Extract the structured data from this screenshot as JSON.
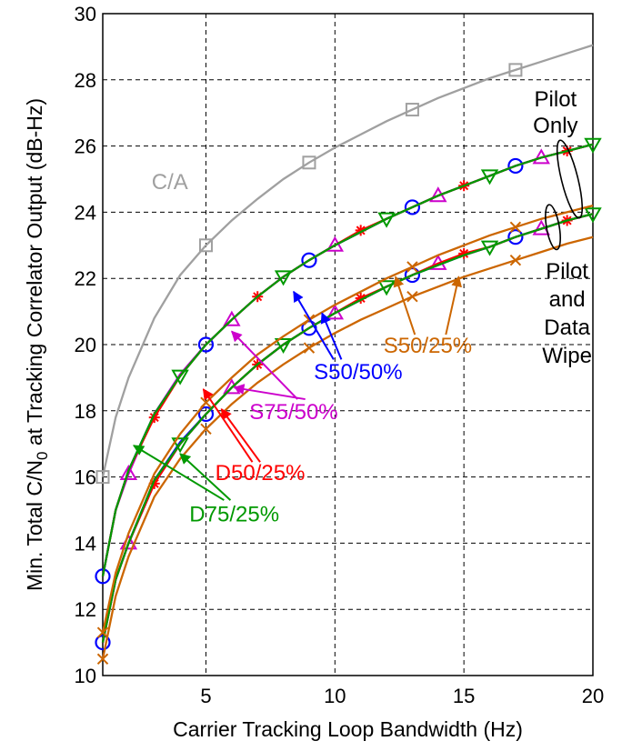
{
  "chart_data": {
    "type": "line",
    "title": "",
    "xlabel": "Carrier Tracking Loop Bandwidth (Hz)",
    "ylabel_parts": [
      "Min. Total C/N",
      "0",
      " at Tracking Correlator Output (dB-Hz)"
    ],
    "xlim": [
      1,
      20
    ],
    "ylim": [
      10,
      30
    ],
    "xticks": [
      5,
      10,
      15,
      20
    ],
    "yticks": [
      10,
      12,
      14,
      16,
      18,
      20,
      22,
      24,
      26,
      28,
      30
    ],
    "grid": true,
    "series": [
      {
        "name": "C/A",
        "color": "#a0a0a0",
        "marker": "square",
        "x": [
          1,
          1.5,
          2,
          3,
          4,
          5,
          6,
          7,
          8,
          9,
          10,
          11,
          12,
          13,
          14,
          15,
          16,
          17,
          18,
          19,
          20
        ],
        "y": [
          16.0,
          17.8,
          19.0,
          20.8,
          22.1,
          23.0,
          23.75,
          24.4,
          25.0,
          25.5,
          25.95,
          26.35,
          26.75,
          27.1,
          27.45,
          27.75,
          28.05,
          28.3,
          28.55,
          28.8,
          29.05
        ],
        "marker_x": [
          1,
          5,
          9,
          13,
          17
        ]
      },
      {
        "name": "S50/50%",
        "color": "#0000ff",
        "marker": "circle",
        "x": [
          1,
          1.5,
          2,
          3,
          4,
          5,
          6,
          7,
          8,
          9,
          10,
          11,
          12,
          13,
          14,
          15,
          16,
          17,
          18,
          19,
          20
        ],
        "y": [
          13.0,
          15.0,
          16.2,
          17.9,
          19.1,
          20.0,
          20.75,
          21.45,
          22.05,
          22.55,
          23.0,
          23.4,
          23.8,
          24.15,
          24.5,
          24.8,
          25.1,
          25.4,
          25.65,
          25.85,
          26.05
        ],
        "marker_x": [
          1,
          5,
          9,
          13,
          17
        ]
      },
      {
        "name": "S75/50%",
        "color": "#cc00cc",
        "marker": "triangle-up",
        "x": [
          1,
          1.5,
          2,
          3,
          4,
          5,
          6,
          7,
          8,
          9,
          10,
          11,
          12,
          13,
          14,
          15,
          16,
          17,
          18,
          19,
          20
        ],
        "y": [
          13.0,
          15.0,
          16.1,
          17.9,
          19.1,
          20.0,
          20.75,
          21.45,
          22.05,
          22.55,
          23.0,
          23.4,
          23.8,
          24.15,
          24.5,
          24.8,
          25.1,
          25.4,
          25.65,
          25.85,
          26.05
        ],
        "marker_x": [
          2,
          6,
          10,
          14,
          18
        ]
      },
      {
        "name": "D50/25%",
        "color": "#ff0000",
        "marker": "asterisk",
        "x": [
          1,
          1.5,
          2,
          3,
          4,
          5,
          6,
          7,
          8,
          9,
          10,
          11,
          12,
          13,
          14,
          15,
          16,
          17,
          18,
          19,
          20
        ],
        "y": [
          13.0,
          15.0,
          16.2,
          17.8,
          19.05,
          20.0,
          20.75,
          21.45,
          22.05,
          22.55,
          23.0,
          23.45,
          23.8,
          24.15,
          24.5,
          24.8,
          25.1,
          25.4,
          25.65,
          25.85,
          26.05
        ],
        "marker_x": [
          3,
          7,
          11,
          15,
          19
        ]
      },
      {
        "name": "D75/25%",
        "color": "#009900",
        "marker": "triangle-down",
        "x": [
          1,
          1.5,
          2,
          3,
          4,
          5,
          6,
          7,
          8,
          9,
          10,
          11,
          12,
          13,
          14,
          15,
          16,
          17,
          18,
          19,
          20
        ],
        "y": [
          13.0,
          15.0,
          16.2,
          17.9,
          19.05,
          20.0,
          20.75,
          21.45,
          22.05,
          22.55,
          23.0,
          23.4,
          23.8,
          24.15,
          24.5,
          24.8,
          25.1,
          25.4,
          25.65,
          25.85,
          26.05
        ],
        "marker_x": [
          4,
          8,
          12,
          16,
          20
        ]
      },
      {
        "name": "S50/50% (Pilot and Data Wipe)",
        "color": "#0000ff",
        "marker": "circle",
        "x": [
          1,
          1.5,
          2,
          3,
          4,
          5,
          6,
          7,
          8,
          9,
          10,
          11,
          12,
          13,
          14,
          15,
          16,
          17,
          18,
          19,
          20
        ],
        "y": [
          11.0,
          12.9,
          14.0,
          15.9,
          17.05,
          17.9,
          18.7,
          19.4,
          20.0,
          20.5,
          20.95,
          21.35,
          21.75,
          22.1,
          22.4,
          22.7,
          22.95,
          23.25,
          23.5,
          23.75,
          23.95
        ],
        "marker_x": [
          1,
          5,
          9,
          13,
          17
        ]
      },
      {
        "name": "S75/50% (Pilot and Data Wipe)",
        "color": "#cc00cc",
        "marker": "triangle-up",
        "x": [
          1,
          1.5,
          2,
          3,
          4,
          5,
          6,
          7,
          8,
          9,
          10,
          11,
          12,
          13,
          14,
          15,
          16,
          17,
          18,
          19,
          20
        ],
        "y": [
          11.0,
          12.9,
          14.0,
          15.8,
          17.0,
          17.9,
          18.7,
          19.4,
          20.0,
          20.5,
          20.95,
          21.35,
          21.75,
          22.1,
          22.45,
          22.7,
          22.95,
          23.25,
          23.5,
          23.75,
          23.95
        ],
        "marker_x": [
          2,
          6,
          10,
          14,
          18
        ]
      },
      {
        "name": "D50/25% (Pilot and Data Wipe)",
        "color": "#ff0000",
        "marker": "asterisk",
        "x": [
          1,
          1.5,
          2,
          3,
          4,
          5,
          6,
          7,
          8,
          9,
          10,
          11,
          12,
          13,
          14,
          15,
          16,
          17,
          18,
          19,
          20
        ],
        "y": [
          11.0,
          12.9,
          14.0,
          15.8,
          17.0,
          17.9,
          18.7,
          19.4,
          20.0,
          20.5,
          20.95,
          21.4,
          21.75,
          22.1,
          22.45,
          22.75,
          22.95,
          23.25,
          23.5,
          23.75,
          23.95
        ],
        "marker_x": [
          3,
          7,
          11,
          15,
          19
        ]
      },
      {
        "name": "D75/25% (Pilot and Data Wipe)",
        "color": "#009900",
        "marker": "triangle-down",
        "x": [
          1,
          1.5,
          2,
          3,
          4,
          5,
          6,
          7,
          8,
          9,
          10,
          11,
          12,
          13,
          14,
          15,
          16,
          17,
          18,
          19,
          20
        ],
        "y": [
          11.0,
          12.9,
          14.0,
          15.9,
          17.0,
          17.9,
          18.7,
          19.4,
          20.0,
          20.5,
          20.95,
          21.35,
          21.75,
          22.1,
          22.4,
          22.7,
          22.95,
          23.25,
          23.5,
          23.75,
          23.95
        ],
        "marker_x": [
          4,
          8,
          12,
          16,
          20
        ]
      },
      {
        "name": "S50/25% (upper)",
        "color": "#cc6600",
        "marker": "x",
        "x": [
          1,
          1.5,
          2,
          3,
          4,
          5,
          6,
          7,
          8,
          9,
          10,
          11,
          12,
          13,
          14,
          15,
          16,
          17,
          18,
          19,
          20
        ],
        "y": [
          11.3,
          13.1,
          14.3,
          16.1,
          17.3,
          18.25,
          19.0,
          19.7,
          20.25,
          20.75,
          21.2,
          21.6,
          22.0,
          22.35,
          22.7,
          23.0,
          23.3,
          23.55,
          23.8,
          24.0,
          24.2
        ],
        "marker_x": [
          1,
          5,
          9,
          13,
          17
        ]
      },
      {
        "name": "S50/25% (lower)",
        "color": "#cc6600",
        "marker": "x",
        "x": [
          1,
          1.5,
          2,
          3,
          4,
          5,
          6,
          7,
          8,
          9,
          10,
          11,
          12,
          13,
          14,
          15,
          16,
          17,
          18,
          19,
          20
        ],
        "y": [
          10.5,
          12.4,
          13.6,
          15.4,
          16.55,
          17.45,
          18.2,
          18.85,
          19.4,
          19.9,
          20.35,
          20.75,
          21.1,
          21.45,
          21.75,
          22.05,
          22.3,
          22.55,
          22.8,
          23.05,
          23.25
        ],
        "marker_x": [
          1,
          5,
          9,
          13,
          17
        ]
      }
    ],
    "annotations": [
      {
        "text": "C/A",
        "color": "#a0a0a0",
        "x": 3.6,
        "y": 24.7
      },
      {
        "text": "Pilot",
        "color": "#000000",
        "x": 18.55,
        "y": 27.2
      },
      {
        "text": "Only",
        "color": "#000000",
        "x": 18.55,
        "y": 26.4
      },
      {
        "text": "Pilot",
        "color": "#000000",
        "x": 19.0,
        "y": 22.0
      },
      {
        "text": "and",
        "color": "#000000",
        "x": 19.0,
        "y": 21.15
      },
      {
        "text": "Data",
        "color": "#000000",
        "x": 19.0,
        "y": 20.3
      },
      {
        "text": "Wipe",
        "color": "#000000",
        "x": 19.0,
        "y": 19.45
      },
      {
        "text": "S50/25%",
        "color": "#cc6600",
        "x": 13.6,
        "y": 19.75
      },
      {
        "text": "S50/50%",
        "color": "#0000ff",
        "x": 10.9,
        "y": 18.95
      },
      {
        "text": "S75/50%",
        "color": "#cc00cc",
        "x": 8.4,
        "y": 17.75
      },
      {
        "text": "D50/25%",
        "color": "#ff0000",
        "x": 7.1,
        "y": 15.9
      },
      {
        "text": "D75/25%",
        "color": "#009900",
        "x": 6.1,
        "y": 14.65
      }
    ]
  }
}
